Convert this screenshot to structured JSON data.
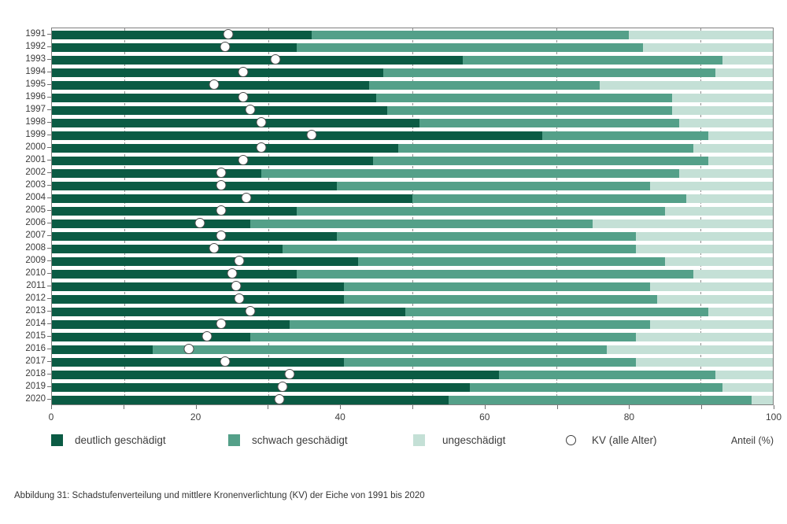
{
  "figure": {
    "caption": "Abbildung 31: Schadstufenverteilung und mittlere Kronenverlichtung (KV) der Eiche von 1991 bis 2020"
  },
  "legend": {
    "items": [
      {
        "label": "deutlich geschädigt",
        "marker": "swatch",
        "color": "#0b5b44"
      },
      {
        "label": "schwach geschädigt",
        "marker": "swatch",
        "color": "#54a089"
      },
      {
        "label": "ungeschädigt",
        "marker": "swatch",
        "color": "#c4e0d6"
      },
      {
        "label": "KV (alle Alter)",
        "marker": "circle",
        "color": "#ffffff"
      }
    ],
    "axis_unit_label": "Anteil (%)"
  },
  "chart_data": {
    "type": "bar",
    "orientation": "horizontal",
    "stacked": true,
    "title": "",
    "xlabel": "Anteil (%)",
    "ylabel": "",
    "xlim": [
      0,
      100
    ],
    "xticks_labeled": [
      0,
      20,
      40,
      60,
      80,
      100
    ],
    "xticks_minor": [
      10,
      30,
      50,
      70,
      90
    ],
    "gridlines_dashed_at": [
      10,
      30,
      50,
      70,
      90
    ],
    "grid": "behind-bars",
    "legend_position": "bottom",
    "categories": [
      1991,
      1992,
      1993,
      1994,
      1995,
      1996,
      1997,
      1998,
      1999,
      2000,
      2001,
      2002,
      2003,
      2004,
      2005,
      2006,
      2007,
      2008,
      2009,
      2010,
      2011,
      2012,
      2013,
      2014,
      2015,
      2016,
      2017,
      2018,
      2019,
      2020
    ],
    "series": [
      {
        "name": "deutlich geschädigt",
        "role": "stack-segment",
        "color": "#0b5b44",
        "values": [
          36,
          34,
          57,
          46,
          44,
          45,
          46.5,
          51,
          68,
          48,
          44.5,
          29,
          39.5,
          50,
          34,
          27.5,
          39.5,
          32,
          42.5,
          34,
          40.5,
          40.5,
          49,
          33,
          27.5,
          14,
          40.5,
          62,
          58,
          55
        ]
      },
      {
        "name": "schwach geschädigt",
        "role": "stack-segment",
        "color": "#54a089",
        "values": [
          44,
          48,
          36,
          46,
          32,
          41,
          39.5,
          36,
          23,
          41,
          46.5,
          58,
          43.5,
          38,
          51,
          47.5,
          41.5,
          49,
          42.5,
          55,
          42.5,
          43.5,
          42,
          50,
          53.5,
          63,
          40.5,
          30,
          35,
          42
        ]
      },
      {
        "name": "ungeschädigt",
        "role": "stack-segment",
        "color": "#c4e0d6",
        "values": [
          20,
          18,
          7,
          8,
          24,
          14,
          14,
          13,
          9,
          11,
          9,
          13,
          17,
          12,
          15,
          25,
          19,
          19,
          15,
          11,
          17,
          16,
          9,
          17,
          19,
          23,
          19,
          8,
          7,
          3
        ]
      },
      {
        "name": "KV (alle Alter)",
        "role": "point-marker",
        "marker": "open-circle",
        "values": [
          24.5,
          24,
          31,
          26.5,
          22.5,
          26.5,
          27.5,
          29,
          36,
          29,
          26.5,
          23.5,
          23.5,
          27,
          23.5,
          20.5,
          23.5,
          22.5,
          26,
          25,
          25.5,
          26,
          27.5,
          23.5,
          21.5,
          19,
          24,
          33,
          32,
          31.5
        ]
      }
    ]
  }
}
